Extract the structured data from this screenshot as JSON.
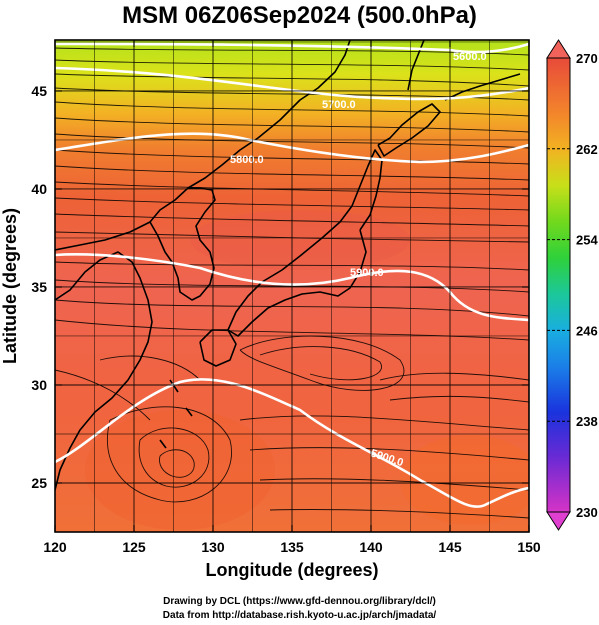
{
  "title": "MSM 06Z06Sep2024 (500.0hPa)",
  "x_axis": {
    "label": "Longitude (degrees)",
    "range": [
      120,
      150
    ],
    "ticks": [
      "120",
      "125",
      "130",
      "135",
      "140",
      "145",
      "150"
    ]
  },
  "y_axis": {
    "label": "Latitude  (degrees)",
    "range": [
      22.5,
      47.6
    ],
    "ticks": [
      "25",
      "30",
      "35",
      "40",
      "45"
    ]
  },
  "colorbar": {
    "range": [
      230,
      270
    ],
    "labels": [
      "230",
      "238",
      "246",
      "254",
      "262",
      "270"
    ],
    "colors": [
      "#dd33cc",
      "#6a2bd6",
      "#1a33dd",
      "#1b7ee8",
      "#19a9e0",
      "#1bc8a0",
      "#24d07a",
      "#2fd13a",
      "#67da1e",
      "#a8e21a",
      "#d8e018",
      "#f0b321",
      "#f38b2a",
      "#f06a3a",
      "#ec5a48",
      "#e84a3a"
    ]
  },
  "contours": [
    {
      "label": "5600.0",
      "color": "#ffffff",
      "lat": [
        47.2,
        47.3,
        47.5,
        47.6,
        47.4,
        47.3
      ]
    },
    {
      "label": "5700.0",
      "color": "#ffffff",
      "lat": [
        47.3,
        46.7,
        45.9,
        45.4,
        45.2,
        45.6
      ]
    },
    {
      "label": "5800.0",
      "color": "#ffffff",
      "lat": [
        42.3,
        42.9,
        42.4,
        41.9,
        41.6,
        42.6
      ]
    },
    {
      "label": "5900.0",
      "color": "#ffffff",
      "lat": [
        37.3,
        36.5,
        35.4,
        36.7,
        35.2,
        34.0
      ]
    },
    {
      "label": "5900.0",
      "color": "#ffffff",
      "lat": [
        25.7,
        29.2,
        28.3,
        25.8,
        24.3,
        22.8
      ]
    }
  ],
  "credits": [
    "Drawing by DCL (https://www.gfd-dennou.org/library/dcl/)",
    "Data from http://database.rish.kyoto-u.ac.jp/arch/jmadata/"
  ]
}
